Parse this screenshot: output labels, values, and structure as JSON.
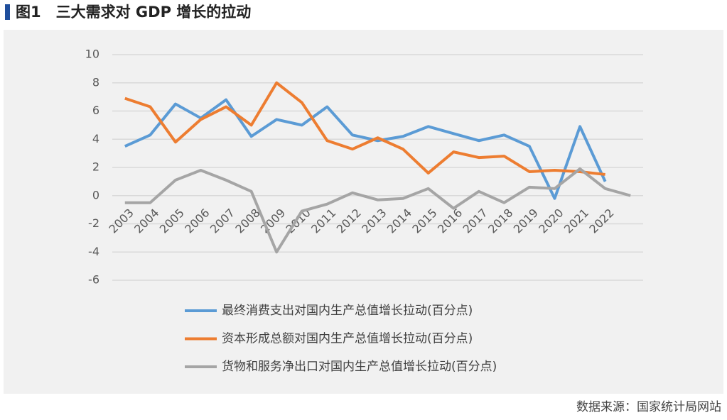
{
  "chart_data": {
    "type": "line",
    "title": "图1　三大需求对 GDP 增长的拉动",
    "source": "数据来源：国家统计局网站",
    "categories": [
      "2003",
      "2004",
      "2005",
      "2006",
      "2007",
      "2008",
      "2009",
      "2010",
      "2011",
      "2012",
      "2013",
      "2014",
      "2015",
      "2016",
      "2017",
      "2018",
      "2019",
      "2020",
      "2021",
      "2022",
      null
    ],
    "series": [
      {
        "name": "最终消费支出对国内生产总值增长拉动(百分点)",
        "color": "#5b9bd5",
        "values": [
          3.5,
          4.3,
          6.5,
          5.5,
          6.8,
          4.2,
          5.4,
          5.0,
          6.3,
          4.3,
          3.9,
          4.2,
          4.9,
          4.4,
          3.9,
          4.3,
          3.5,
          -0.2,
          4.9,
          1.0,
          null
        ]
      },
      {
        "name": "资本形成总额对国内生产总值增长拉动(百分点)",
        "color": "#ed7d31",
        "values": [
          6.9,
          6.3,
          3.8,
          5.4,
          6.3,
          5.0,
          8.0,
          6.6,
          3.9,
          3.3,
          4.1,
          3.3,
          1.6,
          3.1,
          2.7,
          2.8,
          1.7,
          1.8,
          1.7,
          1.5,
          null
        ]
      },
      {
        "name": "货物和服务净出口对国内生产总值增长拉动(百分点)",
        "color": "#a5a5a5",
        "values": [
          -0.5,
          -0.5,
          1.1,
          1.8,
          1.1,
          0.3,
          -4.0,
          -1.1,
          -0.6,
          0.2,
          -0.3,
          -0.2,
          0.5,
          -0.9,
          0.3,
          -0.5,
          0.6,
          0.5,
          1.9,
          0.5,
          0
        ]
      }
    ],
    "ylim": [
      -6,
      10
    ],
    "yticks": [
      -6,
      -4,
      -2,
      0,
      2,
      4,
      6,
      8,
      10
    ],
    "grid": true,
    "legend": "bottom"
  }
}
